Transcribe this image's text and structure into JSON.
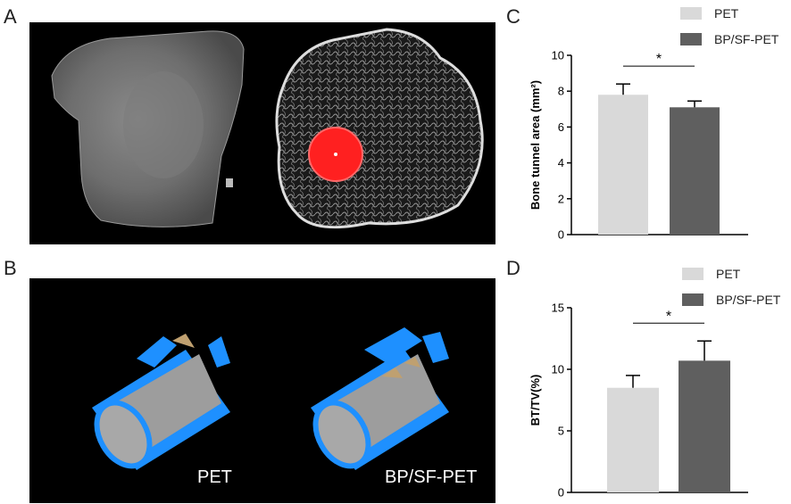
{
  "panels": {
    "a": {
      "letter": "A"
    },
    "b": {
      "letter": "B",
      "label_left": "PET",
      "label_right": "BP/SF-PET"
    },
    "c": {
      "letter": "C"
    },
    "d": {
      "letter": "D"
    }
  },
  "colors": {
    "pet": "#d9d9d9",
    "bp_sf_pet": "#5f5f5f",
    "implant_blue": "#1e90ff",
    "roi_red": "#ff2020"
  },
  "chart_data": [
    {
      "type": "bar",
      "panel": "C",
      "categories": [
        "PET",
        "BP/SF-PET"
      ],
      "values": [
        7.8,
        7.1
      ],
      "errors": [
        0.6,
        0.35
      ],
      "ylabel": "Bone tunnel area (mm²)",
      "ylim": [
        0,
        10
      ],
      "yticks": [
        0,
        2,
        4,
        6,
        8,
        10
      ],
      "significance": "*",
      "legend": [
        "PET",
        "BP/SF-PET"
      ],
      "legend_position": "top-right",
      "grid": false
    },
    {
      "type": "bar",
      "panel": "D",
      "categories": [
        "PET",
        "BP/SF-PET"
      ],
      "values": [
        8.5,
        10.7
      ],
      "errors": [
        1.0,
        1.6
      ],
      "ylabel": "BT/TV(%)",
      "ylim": [
        0,
        15
      ],
      "yticks": [
        0,
        5,
        10,
        15
      ],
      "significance": "*",
      "legend": [
        "PET",
        "BP/SF-PET"
      ],
      "legend_position": "top-right",
      "grid": false
    }
  ]
}
